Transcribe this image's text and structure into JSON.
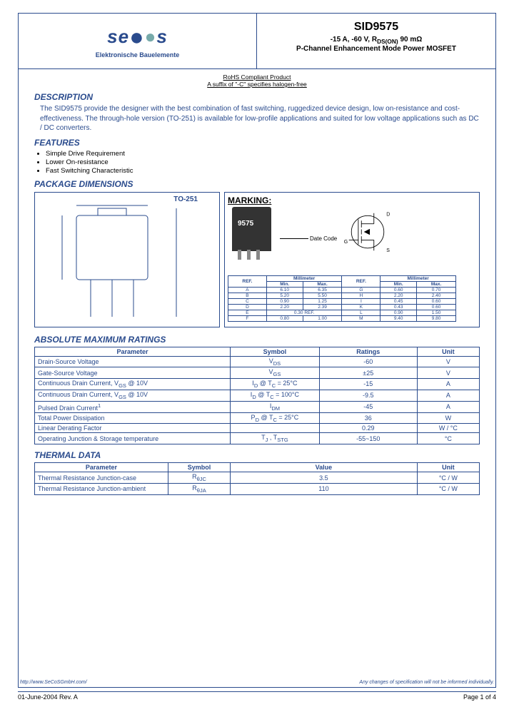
{
  "header": {
    "logo_main": "secos",
    "logo_sub": "Elektronische Bauelemente",
    "partnum": "SID9575",
    "spec_line": "-15 A, -60 V, R",
    "spec_sub": "DS(ON)",
    "spec_val": " 90 mΩ",
    "parttype": "P-Channel Enhancement Mode Power MOSFET"
  },
  "rohs": {
    "line1": "RoHS Compliant Product",
    "line2": "A suffix of \"-C\" specifies halogen-free"
  },
  "sections": {
    "desc_h": "DESCRIPTION",
    "desc": "The SID9575 provide the designer with the best combination of fast switching, ruggedized device design, low on-resistance and cost-effectiveness. The through-hole version (TO-251) is available for low-profile applications and suited for low voltage applications such as DC / DC converters.",
    "feat_h": "FEATURES",
    "features": [
      "Simple Drive Requirement",
      "Lower On-resistance",
      "Fast Switching Characteristic"
    ],
    "pkg_h": "PACKAGE DIMENSIONS",
    "abs_h": "ABSOLUTE MAXIMUM RATINGS",
    "thermal_h": "THERMAL DATA"
  },
  "pkg": {
    "to_label": "TO-251",
    "marking_h": "MARKING:",
    "chip_num": "9575",
    "datecode": "Date Code",
    "pins": {
      "d": "D",
      "g": "G",
      "s": "S"
    }
  },
  "dim_table": {
    "headers": [
      "REF.",
      "Millimeter",
      "REF.",
      "Millimeter"
    ],
    "subheaders": [
      "Min.",
      "Max.",
      "Min.",
      "Max."
    ],
    "rows": [
      [
        "A",
        "6.10",
        "6.35",
        "G",
        "0.60",
        "0.70"
      ],
      [
        "B",
        "5.20",
        "5.50",
        "H",
        "2.20",
        "2.40"
      ],
      [
        "C",
        "0.90",
        "1.25",
        "I",
        "0.45",
        "0.60"
      ],
      [
        "D",
        "2.20",
        "2.39",
        "K",
        "0.43",
        "0.60"
      ],
      [
        "E",
        "0.30 REF.",
        "",
        "L",
        "0.90",
        "1.50"
      ],
      [
        "F",
        "0.80",
        "1.00",
        "M",
        "9.40",
        "9.80"
      ]
    ]
  },
  "abs_table": {
    "headers": [
      "Parameter",
      "Symbol",
      "Ratings",
      "Unit"
    ],
    "rows": [
      [
        "Drain-Source Voltage",
        "V<sub>DS</sub>",
        "-60",
        "V"
      ],
      [
        "Gate-Source Voltage",
        "V<sub>GS</sub>",
        "±25",
        "V"
      ],
      [
        "Continuous Drain Current, V<sub>GS</sub> @ 10V",
        "I<sub>D</sub> @ T<sub>C</sub> = 25°C",
        "-15",
        "A"
      ],
      [
        "Continuous Drain Current, V<sub>GS</sub> @ 10V",
        "I<sub>D</sub> @ T<sub>C</sub> = 100°C",
        "-9.5",
        "A"
      ],
      [
        "Pulsed Drain Current<sup>1</sup>",
        "I<sub>DM</sub>",
        "-45",
        "A"
      ],
      [
        "Total Power Dissipation",
        "P<sub>D</sub> @ T<sub>C</sub> = 25°C",
        "36",
        "W"
      ],
      [
        "Linear Derating Factor",
        "",
        "0.29",
        "W / °C"
      ],
      [
        "Operating Junction & Storage temperature",
        "T<sub>J</sub> , T<sub>STG</sub>",
        "-55~150",
        "°C"
      ]
    ]
  },
  "thermal_table": {
    "headers": [
      "Parameter",
      "Symbol",
      "Value",
      "Unit"
    ],
    "rows": [
      [
        "Thermal Resistance Junction-case",
        "R<sub>θJC</sub>",
        "3.5",
        "°C / W"
      ],
      [
        "Thermal Resistance Junction-ambient",
        "R<sub>θJA</sub>",
        "110",
        "°C / W"
      ]
    ]
  },
  "footer": {
    "url": "http://www.SeCoSGmbH.com/",
    "disclaimer": "Any changes of specification will not be informed individually.",
    "date": "01-June-2004 Rev. A",
    "page": "Page 1 of 4"
  },
  "colors": {
    "brand": "#2a4b8d",
    "accent": "#7aa"
  }
}
